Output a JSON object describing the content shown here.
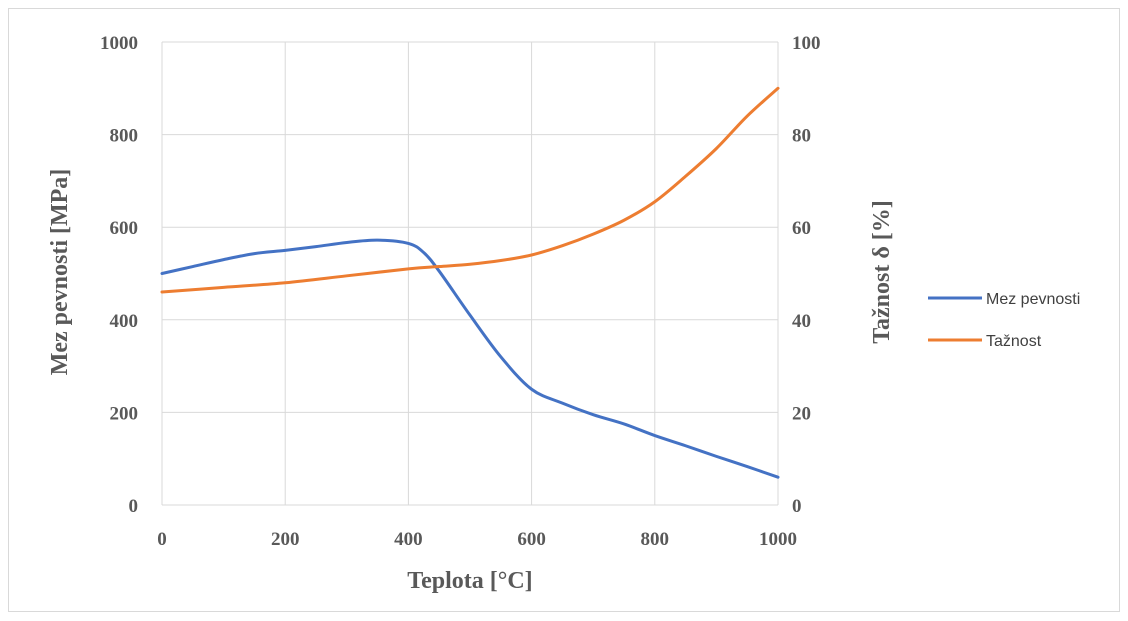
{
  "chart_data": {
    "type": "line",
    "title": "",
    "xlabel": "Teplota [°C]",
    "ylabel_left": "Mez pevnosti [MPa]",
    "ylabel_right": "Tažnost δ [%]",
    "xlim": [
      0,
      1000
    ],
    "ylim_left": [
      0,
      1000
    ],
    "ylim_right": [
      0,
      100
    ],
    "x_ticks": [
      "0",
      "200",
      "400",
      "600",
      "800",
      "1000"
    ],
    "y_left_ticks": [
      "0",
      "200",
      "400",
      "600",
      "800",
      "1000"
    ],
    "y_right_ticks": [
      "0",
      "20",
      "40",
      "60",
      "80",
      "100"
    ],
    "grid": true,
    "legend_position": "right",
    "series": [
      {
        "name": "Mez pevnosti",
        "axis": "left",
        "color": "#4472C4",
        "x": [
          0,
          50,
          100,
          150,
          200,
          250,
          300,
          350,
          400,
          425,
          450,
          500,
          550,
          600,
          650,
          700,
          750,
          800,
          850,
          900,
          950,
          1000
        ],
        "y": [
          500,
          515,
          530,
          543,
          550,
          558,
          567,
          572,
          565,
          545,
          505,
          410,
          320,
          250,
          220,
          195,
          175,
          150,
          128,
          105,
          83,
          60
        ]
      },
      {
        "name": "Tažnost",
        "axis": "right",
        "color": "#ED7D31",
        "x": [
          0,
          100,
          200,
          300,
          400,
          450,
          500,
          550,
          600,
          650,
          700,
          750,
          800,
          850,
          900,
          950,
          1000
        ],
        "y": [
          46,
          47,
          48,
          49.5,
          51,
          51.5,
          52,
          52.8,
          54,
          56,
          58.5,
          61.5,
          65.5,
          71,
          77,
          84,
          90
        ]
      }
    ]
  }
}
